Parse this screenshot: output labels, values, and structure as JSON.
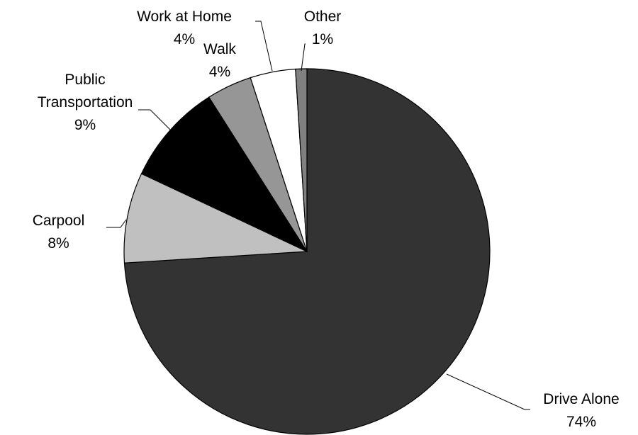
{
  "chart_data": {
    "type": "pie",
    "categories": [
      "Drive Alone",
      "Carpool",
      "Public Transportation",
      "Walk",
      "Work at Home",
      "Other"
    ],
    "values": [
      74,
      8,
      9,
      4,
      4,
      1
    ],
    "value_labels": [
      "74%",
      "8%",
      "9%",
      "4%",
      "4%",
      "1%"
    ],
    "colors": [
      "#333333",
      "#c0c0c0",
      "#000000",
      "#969696",
      "#ffffff",
      "#808080"
    ]
  }
}
